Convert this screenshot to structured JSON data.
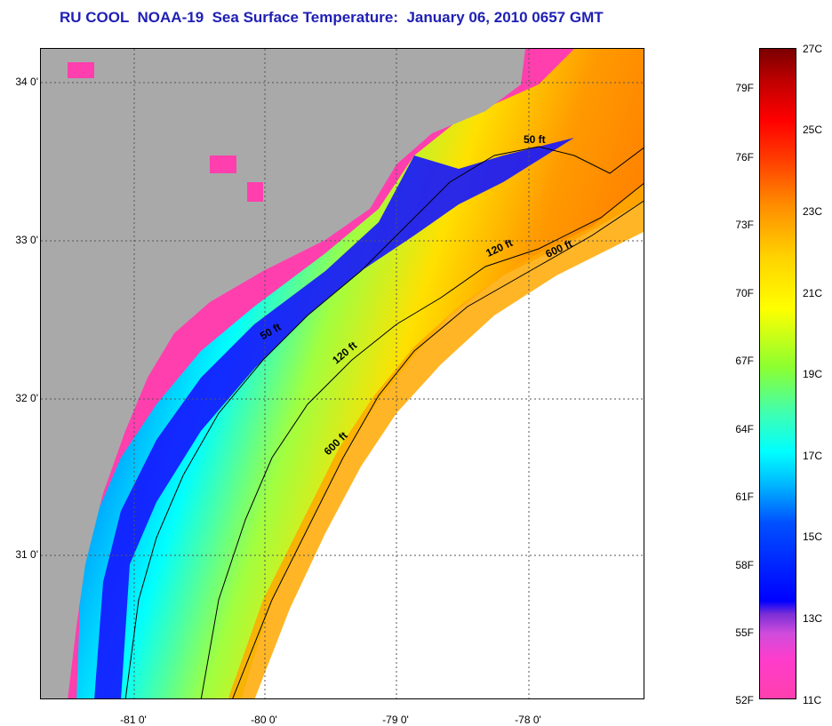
{
  "title": "RU COOL  NOAA-19  Sea Surface Temperature:  January 06, 2010 0657 GMT",
  "axes": {
    "lat_ticks": [
      "34 0'",
      "33 0'",
      "32 0'",
      "31 0'"
    ],
    "lon_ticks": [
      "-81 0'",
      "-80 0'",
      "-79 0'",
      "-78 0'"
    ]
  },
  "contours": {
    "c50a": "50 ft",
    "c50b": "50 ft",
    "c120a": "120 ft",
    "c120b": "120 ft",
    "c600a": "600 ft",
    "c600b": "600 ft"
  },
  "colorbar": {
    "fahrenheit": [
      "79F",
      "76F",
      "73F",
      "70F",
      "67F",
      "64F",
      "61F",
      "58F",
      "55F",
      "52F"
    ],
    "celsius": [
      "27C",
      "25C",
      "23C",
      "21C",
      "19C",
      "17C",
      "15C",
      "13C",
      "11C"
    ]
  },
  "colors": {
    "land": "#a9a9a9",
    "title": "#1f1fb4",
    "coastal_cold": "#ff3fae",
    "gulf_stream": "#ff8c00"
  }
}
